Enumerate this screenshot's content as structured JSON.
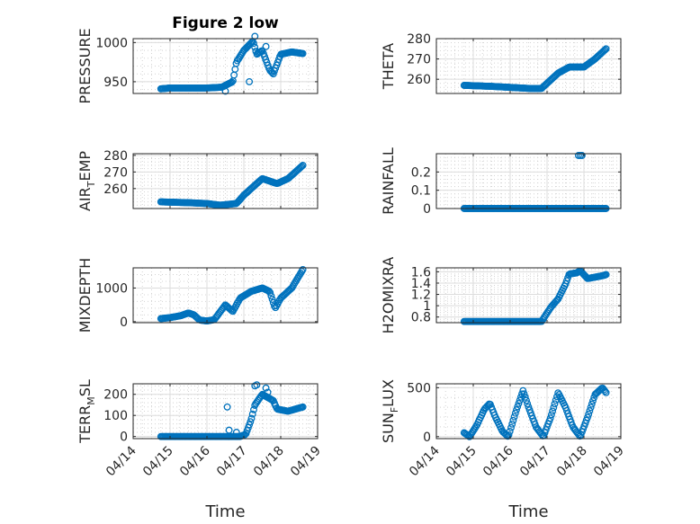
{
  "marker_color": "#0072BD",
  "chart_data": [
    {
      "type": "scatter",
      "title": "Figure 2 low",
      "ylabel": "PRESSURE",
      "xlabel": "",
      "xlim": [
        "04/14",
        "04/19"
      ],
      "ylim": [
        935,
        1005
      ],
      "yticks": [
        950,
        1000
      ],
      "xticks": [],
      "anchors": [
        [
          14.75,
          941
        ],
        [
          15.0,
          942
        ],
        [
          15.5,
          942
        ],
        [
          16.0,
          942
        ],
        [
          16.4,
          943
        ],
        [
          16.7,
          950
        ],
        [
          16.8,
          975
        ],
        [
          17.0,
          990
        ],
        [
          17.25,
          1002
        ],
        [
          17.35,
          985
        ],
        [
          17.5,
          990
        ],
        [
          17.7,
          965
        ],
        [
          17.8,
          960
        ],
        [
          18.0,
          985
        ],
        [
          18.3,
          988
        ],
        [
          18.6,
          986
        ]
      ],
      "extra_points": [
        [
          16.5,
          938
        ],
        [
          17.15,
          950
        ],
        [
          17.3,
          1008
        ],
        [
          17.6,
          995
        ]
      ]
    },
    {
      "type": "scatter",
      "title": "",
      "ylabel": "THETA",
      "xlabel": "",
      "xlim": [
        "04/14",
        "04/19"
      ],
      "ylim": [
        253,
        280
      ],
      "yticks": [
        260,
        270,
        280
      ],
      "xticks": [],
      "anchors": [
        [
          14.75,
          257
        ],
        [
          15.5,
          256.5
        ],
        [
          16.0,
          256
        ],
        [
          16.5,
          255.5
        ],
        [
          16.85,
          255.5
        ],
        [
          17.0,
          258
        ],
        [
          17.3,
          263
        ],
        [
          17.6,
          266
        ],
        [
          18.0,
          266
        ],
        [
          18.3,
          270
        ],
        [
          18.6,
          275
        ]
      ],
      "extra_points": []
    },
    {
      "type": "scatter",
      "title": "",
      "ylabel": "AIR_TEMP",
      "xlabel": "",
      "xlim": [
        "04/14",
        "04/19"
      ],
      "ylim": [
        248,
        281
      ],
      "yticks": [
        260,
        270,
        280
      ],
      "xticks": [],
      "anchors": [
        [
          14.75,
          252
        ],
        [
          15.5,
          251.5
        ],
        [
          16.0,
          251
        ],
        [
          16.35,
          250
        ],
        [
          16.8,
          251
        ],
        [
          17.0,
          256
        ],
        [
          17.3,
          262
        ],
        [
          17.5,
          266
        ],
        [
          17.9,
          263
        ],
        [
          18.2,
          266
        ],
        [
          18.6,
          274
        ]
      ],
      "extra_points": []
    },
    {
      "type": "scatter",
      "title": "",
      "ylabel": "RAINFALL",
      "xlabel": "",
      "xlim": [
        "04/14",
        "04/19"
      ],
      "ylim": [
        0,
        0.3
      ],
      "yticks": [
        0,
        0.1,
        0.2
      ],
      "xticks": [],
      "anchors": [
        [
          14.75,
          0
        ],
        [
          18.6,
          0
        ]
      ],
      "extra_points": [
        [
          17.85,
          0.29
        ],
        [
          17.9,
          0.29
        ],
        [
          17.95,
          0.29
        ]
      ]
    },
    {
      "type": "scatter",
      "title": "",
      "ylabel": "MIXDEPTH",
      "xlabel": "",
      "xlim": [
        "04/14",
        "04/19"
      ],
      "ylim": [
        -30,
        1600
      ],
      "yticks": [
        0,
        1000
      ],
      "xticks": [],
      "anchors": [
        [
          14.75,
          90
        ],
        [
          15.0,
          120
        ],
        [
          15.3,
          180
        ],
        [
          15.5,
          260
        ],
        [
          15.65,
          200
        ],
        [
          15.8,
          50
        ],
        [
          16.0,
          20
        ],
        [
          16.2,
          60
        ],
        [
          16.5,
          500
        ],
        [
          16.7,
          300
        ],
        [
          16.9,
          700
        ],
        [
          17.2,
          900
        ],
        [
          17.5,
          1000
        ],
        [
          17.7,
          900
        ],
        [
          17.85,
          400
        ],
        [
          18.0,
          700
        ],
        [
          18.3,
          1000
        ],
        [
          18.6,
          1550
        ]
      ],
      "extra_points": []
    },
    {
      "type": "scatter",
      "title": "",
      "ylabel": "H2OMIXRA",
      "xlabel": "",
      "xlim": [
        "04/14",
        "04/19"
      ],
      "ylim": [
        0.7,
        1.67
      ],
      "yticks": [
        0.8,
        1,
        1.2,
        1.4,
        1.6
      ],
      "xticks": [],
      "anchors": [
        [
          14.75,
          0.72
        ],
        [
          16.85,
          0.72
        ],
        [
          16.95,
          0.82
        ],
        [
          17.1,
          0.97
        ],
        [
          17.3,
          1.12
        ],
        [
          17.5,
          1.38
        ],
        [
          17.6,
          1.56
        ],
        [
          17.8,
          1.58
        ],
        [
          17.9,
          1.62
        ],
        [
          18.1,
          1.48
        ],
        [
          18.5,
          1.53
        ],
        [
          18.6,
          1.55
        ]
      ],
      "extra_points": []
    },
    {
      "type": "scatter",
      "title": "",
      "ylabel": "TERR_MSL",
      "xlabel": "Time",
      "xlim": [
        "04/14",
        "04/19"
      ],
      "ylim": [
        -10,
        250
      ],
      "yticks": [
        0,
        100,
        200
      ],
      "xticks": [
        "04/14",
        "04/15",
        "04/16",
        "04/17",
        "04/18",
        "04/19"
      ],
      "anchors": [
        [
          14.75,
          0
        ],
        [
          16.9,
          0
        ],
        [
          17.05,
          10
        ],
        [
          17.2,
          80
        ],
        [
          17.3,
          150
        ],
        [
          17.5,
          200
        ],
        [
          17.8,
          170
        ],
        [
          17.9,
          130
        ],
        [
          18.2,
          120
        ],
        [
          18.6,
          140
        ]
      ],
      "extra_points": [
        [
          16.55,
          140
        ],
        [
          16.6,
          30
        ],
        [
          16.8,
          20
        ],
        [
          17.3,
          240
        ],
        [
          17.35,
          245
        ],
        [
          17.6,
          230
        ],
        [
          17.65,
          210
        ]
      ]
    },
    {
      "type": "scatter",
      "title": "",
      "ylabel": "SUN_FLUX",
      "xlabel": "Time",
      "xlim": [
        "04/14",
        "04/19"
      ],
      "ylim": [
        -20,
        540
      ],
      "yticks": [
        0,
        500
      ],
      "xticks": [
        "04/14",
        "04/15",
        "04/16",
        "04/17",
        "04/18",
        "04/19"
      ],
      "anchors": [
        [
          14.75,
          40
        ],
        [
          14.9,
          0
        ],
        [
          15.1,
          120
        ],
        [
          15.3,
          280
        ],
        [
          15.45,
          340
        ],
        [
          15.6,
          200
        ],
        [
          15.8,
          50
        ],
        [
          15.95,
          0
        ],
        [
          16.15,
          250
        ],
        [
          16.35,
          470
        ],
        [
          16.5,
          300
        ],
        [
          16.7,
          100
        ],
        [
          16.9,
          0
        ],
        [
          17.1,
          200
        ],
        [
          17.3,
          450
        ],
        [
          17.5,
          300
        ],
        [
          17.7,
          100
        ],
        [
          17.9,
          0
        ],
        [
          18.1,
          200
        ],
        [
          18.3,
          430
        ],
        [
          18.5,
          500
        ],
        [
          18.6,
          450
        ]
      ],
      "extra_points": []
    }
  ]
}
